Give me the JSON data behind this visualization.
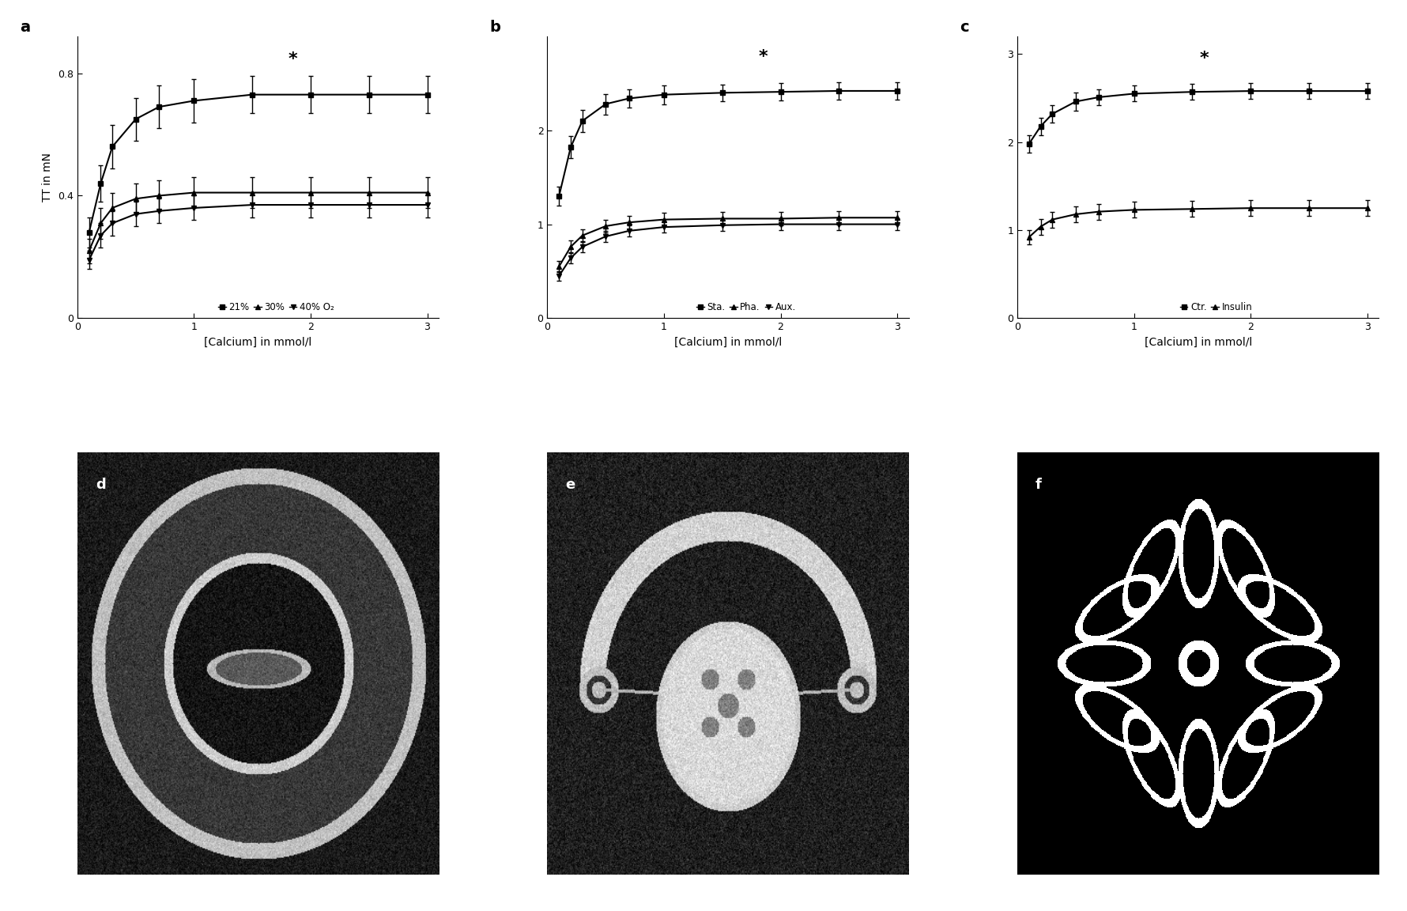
{
  "panel_a": {
    "label": "a",
    "ylabel": "TT in mN",
    "xlabel": "[Calcium] in mmol/l",
    "ylim": [
      0,
      0.92
    ],
    "yticks": [
      0,
      0.4,
      0.8
    ],
    "yticklabels": [
      "0",
      "0.4",
      "0.8"
    ],
    "xlim": [
      0,
      3.1
    ],
    "xticks": [
      0,
      1,
      2,
      3
    ],
    "star_x": 1.85,
    "star_y": 0.845,
    "series": [
      {
        "label": "21%",
        "marker": "s",
        "x": [
          0.1,
          0.2,
          0.3,
          0.5,
          0.7,
          1.0,
          1.5,
          2.0,
          2.5,
          3.0
        ],
        "y": [
          0.28,
          0.44,
          0.56,
          0.65,
          0.69,
          0.71,
          0.73,
          0.73,
          0.73,
          0.73
        ],
        "yerr": [
          0.05,
          0.06,
          0.07,
          0.07,
          0.07,
          0.07,
          0.06,
          0.06,
          0.06,
          0.06
        ]
      },
      {
        "label": "30%",
        "marker": "^",
        "x": [
          0.1,
          0.2,
          0.3,
          0.5,
          0.7,
          1.0,
          1.5,
          2.0,
          2.5,
          3.0
        ],
        "y": [
          0.22,
          0.31,
          0.36,
          0.39,
          0.4,
          0.41,
          0.41,
          0.41,
          0.41,
          0.41
        ],
        "yerr": [
          0.04,
          0.05,
          0.05,
          0.05,
          0.05,
          0.05,
          0.05,
          0.05,
          0.05,
          0.05
        ]
      },
      {
        "label": "40% O₂",
        "marker": "v",
        "x": [
          0.1,
          0.2,
          0.3,
          0.5,
          0.7,
          1.0,
          1.5,
          2.0,
          2.5,
          3.0
        ],
        "y": [
          0.19,
          0.27,
          0.31,
          0.34,
          0.35,
          0.36,
          0.37,
          0.37,
          0.37,
          0.37
        ],
        "yerr": [
          0.03,
          0.04,
          0.04,
          0.04,
          0.04,
          0.04,
          0.04,
          0.04,
          0.04,
          0.04
        ]
      }
    ]
  },
  "panel_b": {
    "label": "b",
    "ylabel": "",
    "xlabel": "[Calcium] in mmol/l",
    "ylim": [
      0,
      3.0
    ],
    "yticks": [
      0,
      1,
      2
    ],
    "yticklabels": [
      "0",
      "1",
      "2"
    ],
    "xlim": [
      0,
      3.1
    ],
    "xticks": [
      0,
      1,
      2,
      3
    ],
    "star_x": 1.85,
    "star_y": 2.78,
    "series": [
      {
        "label": "Sta.",
        "marker": "s",
        "x": [
          0.1,
          0.2,
          0.3,
          0.5,
          0.7,
          1.0,
          1.5,
          2.0,
          2.5,
          3.0
        ],
        "y": [
          1.3,
          1.82,
          2.1,
          2.28,
          2.34,
          2.38,
          2.4,
          2.41,
          2.42,
          2.42
        ],
        "yerr": [
          0.1,
          0.12,
          0.12,
          0.11,
          0.1,
          0.1,
          0.09,
          0.09,
          0.09,
          0.09
        ]
      },
      {
        "label": "Pha.",
        "marker": "^",
        "x": [
          0.1,
          0.2,
          0.3,
          0.5,
          0.7,
          1.0,
          1.5,
          2.0,
          2.5,
          3.0
        ],
        "y": [
          0.55,
          0.76,
          0.88,
          0.98,
          1.02,
          1.05,
          1.06,
          1.06,
          1.07,
          1.07
        ],
        "yerr": [
          0.06,
          0.07,
          0.07,
          0.07,
          0.07,
          0.07,
          0.07,
          0.07,
          0.07,
          0.07
        ]
      },
      {
        "label": "Aux.",
        "marker": "v",
        "x": [
          0.1,
          0.2,
          0.3,
          0.5,
          0.7,
          1.0,
          1.5,
          2.0,
          2.5,
          3.0
        ],
        "y": [
          0.45,
          0.64,
          0.76,
          0.87,
          0.93,
          0.97,
          0.99,
          1.0,
          1.0,
          1.0
        ],
        "yerr": [
          0.05,
          0.06,
          0.06,
          0.06,
          0.06,
          0.06,
          0.06,
          0.06,
          0.06,
          0.06
        ]
      }
    ]
  },
  "panel_c": {
    "label": "c",
    "ylabel": "",
    "xlabel": "[Calcium] in mmol/l",
    "ylim": [
      0,
      3.2
    ],
    "yticks": [
      0,
      1,
      2,
      3
    ],
    "yticklabels": [
      "0",
      "1",
      "2",
      "3"
    ],
    "xlim": [
      0,
      3.1
    ],
    "xticks": [
      0,
      1,
      2,
      3
    ],
    "star_x": 1.6,
    "star_y": 2.95,
    "series": [
      {
        "label": "Ctr.",
        "marker": "s",
        "x": [
          0.1,
          0.2,
          0.3,
          0.5,
          0.7,
          1.0,
          1.5,
          2.0,
          2.5,
          3.0
        ],
        "y": [
          1.98,
          2.18,
          2.32,
          2.46,
          2.51,
          2.55,
          2.57,
          2.58,
          2.58,
          2.58
        ],
        "yerr": [
          0.1,
          0.1,
          0.1,
          0.1,
          0.09,
          0.09,
          0.09,
          0.09,
          0.09,
          0.09
        ]
      },
      {
        "label": "Insulin",
        "marker": "^",
        "x": [
          0.1,
          0.2,
          0.3,
          0.5,
          0.7,
          1.0,
          1.5,
          2.0,
          2.5,
          3.0
        ],
        "y": [
          0.92,
          1.04,
          1.12,
          1.18,
          1.21,
          1.23,
          1.24,
          1.25,
          1.25,
          1.25
        ],
        "yerr": [
          0.08,
          0.09,
          0.09,
          0.09,
          0.09,
          0.09,
          0.09,
          0.09,
          0.09,
          0.09
        ]
      }
    ]
  },
  "bg_color": "#ffffff",
  "line_color": "#000000",
  "marker_size": 5,
  "line_width": 1.5,
  "capsize": 2,
  "elinewidth": 1.0
}
